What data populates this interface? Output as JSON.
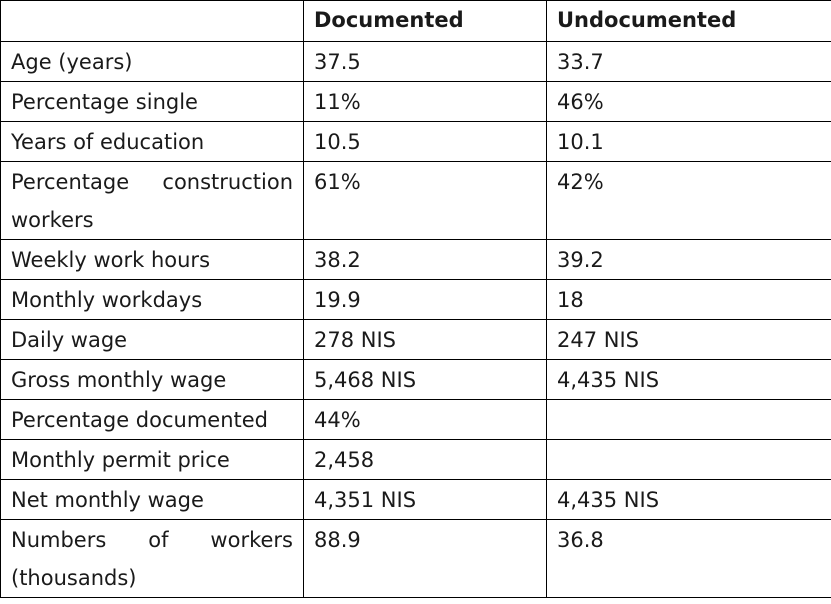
{
  "table": {
    "headers": [
      "",
      "Documented",
      "Undocumented"
    ],
    "rows": [
      {
        "label": "Age (years)",
        "documented": "37.5",
        "undocumented": "33.7"
      },
      {
        "label": "Percentage single",
        "documented": "11%",
        "undocumented": "46%"
      },
      {
        "label": "Years of education",
        "documented": "10.5",
        "undocumented": "10.1"
      },
      {
        "label_line1": "Percentage construction",
        "label_line2": "workers",
        "documented": "61%",
        "undocumented": "42%"
      },
      {
        "label": "Weekly work hours",
        "documented": "38.2",
        "undocumented": "39.2"
      },
      {
        "label": "Monthly workdays",
        "documented": "19.9",
        "undocumented": "18"
      },
      {
        "label": "Daily wage",
        "documented": "278 NIS",
        "undocumented": "247 NIS"
      },
      {
        "label": "Gross monthly wage",
        "documented": "5,468 NIS",
        "undocumented": "4,435 NIS"
      },
      {
        "label": "Percentage documented",
        "documented": "44%",
        "undocumented": ""
      },
      {
        "label": "Monthly permit price",
        "documented": "2,458",
        "undocumented": ""
      },
      {
        "label": "Net monthly wage",
        "documented": "4,351 NIS",
        "undocumented": "4,435 NIS"
      },
      {
        "label_line1": "Numbers of workers",
        "label_line2": "(thousands)",
        "documented": "88.9",
        "undocumented": "36.8"
      }
    ]
  }
}
